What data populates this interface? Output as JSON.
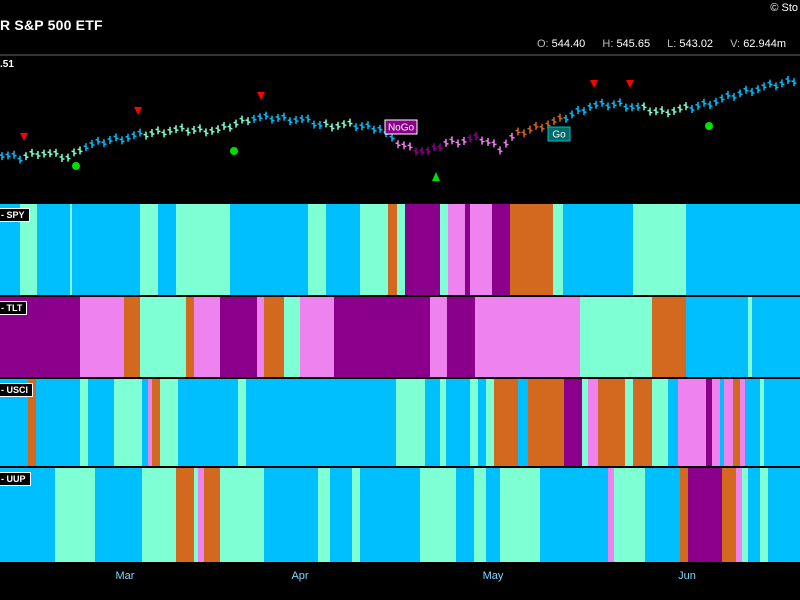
{
  "header": {
    "title": "R S&P 500 ETF",
    "brand": "© Sto",
    "ohlc": {
      "o_label": "O:",
      "o": "544.40",
      "h_label": "H:",
      "h": "545.65",
      "l_label": "L:",
      "l": "543.02",
      "v_label": "V:",
      "v": "62.944m"
    }
  },
  "colors": {
    "strong_go": "#00bfff",
    "weak_go": "#7fffd4",
    "nogo": "#8b008b",
    "weak_nogo": "#ee82ee",
    "neutral": "#d2691e",
    "go_dot": "#00e000",
    "sell_tri": "#ff0000",
    "buy_tri": "#00e000",
    "background": "#000000"
  },
  "chart_data": {
    "type": "ohlc_with_trend_panels",
    "price_label": ".51",
    "x_axis": {
      "ticks": [
        "Mar",
        "Apr",
        "May",
        "Jun"
      ]
    },
    "annotations": [
      "NoGo",
      "Go"
    ],
    "panels": [
      {
        "label": "- SPY"
      },
      {
        "label": "- TLT"
      },
      {
        "label": "- USCI"
      },
      {
        "label": "- UUP"
      }
    ]
  }
}
